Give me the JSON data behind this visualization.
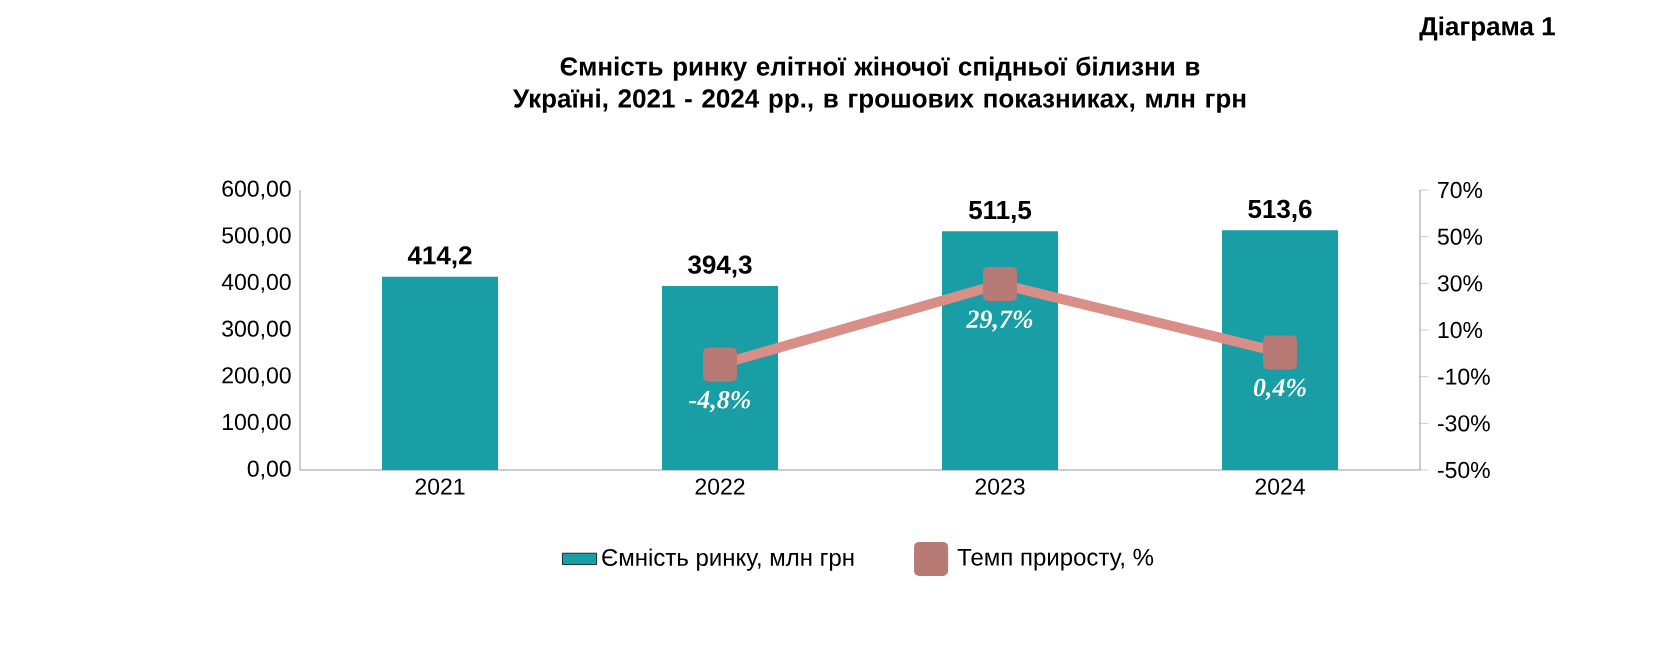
{
  "chart_data": {
    "type": "bar",
    "title": "Ємність ринку елітної жіночої спідньої білизни в Україні, 2021 - 2024 рр., в грошових показниках, млн грн",
    "annotations": [
      "Діаграма 1"
    ],
    "categories": [
      "2021",
      "2022",
      "2023",
      "2024"
    ],
    "series": [
      {
        "name": "Ємність ринку, млн грн",
        "color": "#1a9ea6",
        "values": [
          414.2,
          394.3,
          511.5,
          513.6
        ],
        "value_labels": [
          "414,2",
          "394,3",
          "511,5",
          "513,6"
        ]
      },
      {
        "name": "Темп приросту, %",
        "type": "line",
        "axis": "y2",
        "color": "#d98f88",
        "marker": "square",
        "values": [
          null,
          -4.8,
          29.7,
          0.4
        ],
        "value_labels": [
          null,
          "-4,8%",
          "29,7%",
          "0,4%"
        ]
      }
    ],
    "ylim": [
      0,
      600
    ],
    "yticks": [
      {
        "value": 0,
        "label": "0,00"
      },
      {
        "value": 100,
        "label": "100,00"
      },
      {
        "value": 200,
        "label": "200,00"
      },
      {
        "value": 300,
        "label": "300,00"
      },
      {
        "value": 400,
        "label": "400,00"
      },
      {
        "value": 500,
        "label": "500,00"
      },
      {
        "value": 600,
        "label": "600,00"
      }
    ],
    "y2lim": [
      -50,
      70
    ],
    "y2ticks": [
      {
        "value": -50,
        "label": "-50%"
      },
      {
        "value": -30,
        "label": "-30%"
      },
      {
        "value": -10,
        "label": "-10%"
      },
      {
        "value": 10,
        "label": "10%"
      },
      {
        "value": 30,
        "label": "30%"
      },
      {
        "value": 50,
        "label": "50%"
      },
      {
        "value": 70,
        "label": "70%"
      }
    ],
    "legend": "bottom"
  }
}
